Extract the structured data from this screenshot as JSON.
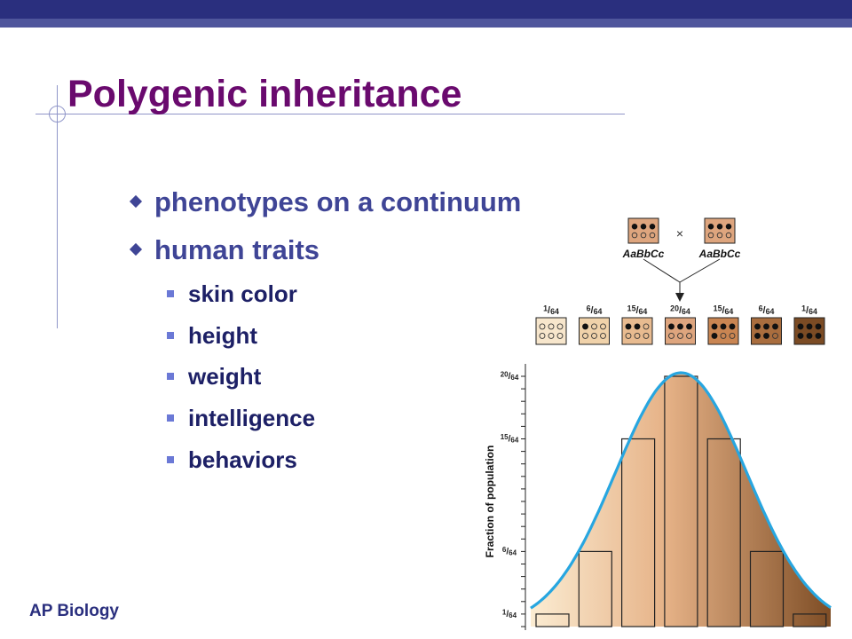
{
  "slide": {
    "title": "Polygenic inheritance",
    "bullets": [
      {
        "text": "phenotypes on a continuum",
        "level": 1
      },
      {
        "text": "human traits",
        "level": 1
      },
      {
        "text": "skin color",
        "level": 2
      },
      {
        "text": "height",
        "level": 2
      },
      {
        "text": "weight",
        "level": 2
      },
      {
        "text": "intelligence",
        "level": 2
      },
      {
        "text": "behaviors",
        "level": 2
      }
    ],
    "footer": "AP Biology"
  },
  "figure": {
    "parents": [
      {
        "genotype": "AaBbCc",
        "dark_dots": 3,
        "color": "#dea57e"
      },
      {
        "genotype": "AaBbCc",
        "dark_dots": 3,
        "color": "#dea57e"
      }
    ],
    "cross_symbol": "×",
    "offspring": [
      {
        "num": "1",
        "den": "64",
        "dark_dots": 0,
        "color": "#f7e6cc"
      },
      {
        "num": "6",
        "den": "64",
        "dark_dots": 1,
        "color": "#f0d2aa"
      },
      {
        "num": "15",
        "den": "64",
        "dark_dots": 2,
        "color": "#e8bb90"
      },
      {
        "num": "20",
        "den": "64",
        "dark_dots": 3,
        "color": "#dea57e"
      },
      {
        "num": "15",
        "den": "64",
        "dark_dots": 4,
        "color": "#c98552"
      },
      {
        "num": "6",
        "den": "64",
        "dark_dots": 5,
        "color": "#a96d3e"
      },
      {
        "num": "1",
        "den": "64",
        "dark_dots": 6,
        "color": "#7b4b24"
      }
    ],
    "curve_color": "#27a6e0"
  },
  "chart_data": {
    "type": "bar",
    "ylabel": "Fraction of population",
    "values": [
      1,
      6,
      15,
      20,
      15,
      6,
      1
    ],
    "value_denominator": 64,
    "y_tick_labels": [
      {
        "num": "1",
        "den": "64",
        "value": 1
      },
      {
        "num": "6",
        "den": "64",
        "value": 6
      },
      {
        "num": "15",
        "den": "64",
        "value": 15
      },
      {
        "num": "20",
        "den": "64",
        "value": 20
      }
    ],
    "ylim": [
      0,
      20
    ]
  }
}
